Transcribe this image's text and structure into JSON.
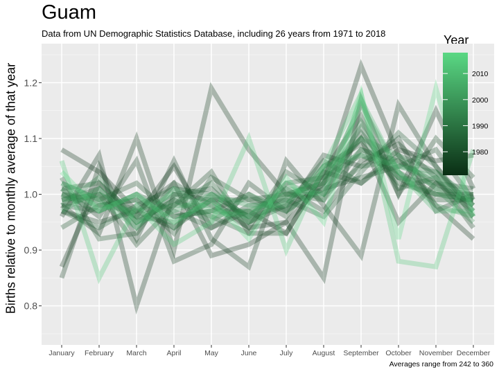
{
  "chart_data": {
    "type": "line",
    "title": "Guam",
    "subtitle": "Data from UN Demographic Statistics Database, including 26 years from 1971 to 2018",
    "caption": "Averages range from 242 to 360",
    "xlabel": "",
    "ylabel": "Births relative to monthly average of that year",
    "categories": [
      "January",
      "February",
      "March",
      "April",
      "May",
      "June",
      "July",
      "August",
      "September",
      "October",
      "November",
      "December"
    ],
    "ylim": [
      0.73,
      1.27
    ],
    "yticks": [
      0.8,
      0.9,
      1.0,
      1.1,
      1.2
    ],
    "ytick_labels": [
      "0.8",
      "0.9",
      "1.0",
      "1.1",
      "1.2"
    ],
    "grid": true,
    "legend": {
      "title": "Year",
      "placement": "top-right",
      "range": [
        1971,
        2018
      ],
      "ticks": [
        1980,
        1990,
        2000,
        2010
      ],
      "tick_labels": [
        "1980",
        "1990",
        "2000",
        "2010"
      ],
      "color_low": "#0a2e14",
      "color_high": "#5ad884"
    },
    "series": [
      {
        "year": 1971,
        "values": [
          0.87,
          1.02,
          0.96,
          1.05,
          0.94,
          0.97,
          0.93,
          1.04,
          1.02,
          1.08,
          1.06,
          1.07
        ]
      },
      {
        "year": 1972,
        "values": [
          1.08,
          1.04,
          0.97,
          1.02,
          0.89,
          0.91,
          0.95,
          1.02,
          1.23,
          1.07,
          0.98,
          0.92
        ]
      },
      {
        "year": 1973,
        "values": [
          0.96,
          1.07,
          0.8,
          1.0,
          0.99,
          0.94,
          0.95,
          0.85,
          1.17,
          1.0,
          1.15,
          1.01
        ]
      },
      {
        "year": 1974,
        "values": [
          0.98,
          0.93,
          1.1,
          0.9,
          1.19,
          1.08,
          1.0,
          1.02,
          1.1,
          0.95,
          1.02,
          0.98
        ]
      },
      {
        "year": 1975,
        "values": [
          0.85,
          1.05,
          0.92,
          1.06,
          0.92,
          0.87,
          1.06,
          0.98,
          0.89,
          1.16,
          1.05,
          0.96
        ]
      },
      {
        "year": 1976,
        "values": [
          1.01,
          0.96,
          1.06,
          0.88,
          0.91,
          1.02,
          0.97,
          1.07,
          1.05,
          1.1,
          0.97,
          1.0
        ]
      },
      {
        "year": 1977,
        "values": [
          0.98,
          1.0,
          0.91,
          0.98,
          1.04,
          0.93,
          0.93,
          1.04,
          1.14,
          1.0,
          1.1,
          1.03
        ]
      },
      {
        "year": 1978,
        "values": [
          0.97,
          0.95,
          0.97,
          0.94,
          0.99,
          0.96,
          1.01,
          0.97,
          1.06,
          1.09,
          1.03,
          0.94
        ]
      },
      {
        "year": 1979,
        "values": [
          0.99,
          1.01,
          0.94,
          1.0,
          1.01,
          0.95,
          0.98,
          1.01,
          1.03,
          1.05,
          1.08,
          0.99
        ]
      },
      {
        "year": 1980,
        "values": [
          1.0,
          0.99,
          1.02,
          0.96,
          0.97,
          1.0,
          0.96,
          1.05,
          1.09,
          1.02,
          1.0,
          0.99
        ]
      },
      {
        "year": 1981,
        "values": [
          0.94,
          0.98,
          0.99,
          0.93,
          1.03,
          0.99,
          1.0,
          0.99,
          1.08,
          1.06,
          1.02,
          1.01
        ]
      },
      {
        "year": 1982,
        "values": [
          1.03,
          0.92,
          0.93,
          1.02,
          0.98,
          0.94,
          1.04,
          1.0,
          1.11,
          1.03,
          0.99,
          0.99
        ]
      },
      {
        "year": 1983,
        "values": [
          0.98,
          0.97,
          1.0,
          0.97,
          0.94,
          0.98,
          0.99,
          0.96,
          1.04,
          1.11,
          1.05,
          0.97
        ]
      },
      {
        "year": 1984,
        "values": [
          1.01,
          1.02,
          0.95,
          0.99,
          0.96,
          0.93,
          1.02,
          1.03,
          1.07,
          1.04,
          1.0,
          1.0
        ]
      },
      {
        "year": 1985,
        "values": [
          0.97,
          0.94,
          0.98,
          1.01,
          1.0,
          0.96,
          0.98,
          1.06,
          1.02,
          1.07,
          1.04,
          0.98
        ]
      },
      {
        "year": 1986,
        "values": [
          1.02,
          0.99,
          0.96,
          0.95,
          0.99,
          0.99,
          0.97,
          1.02,
          1.12,
          1.01,
          1.03,
          0.96
        ]
      },
      {
        "year": 1988,
        "values": [
          0.99,
          1.0,
          0.97,
          0.98,
          1.02,
          0.95,
          1.0,
          1.0,
          1.05,
          1.06,
          1.01,
          1.0
        ]
      },
      {
        "year": 1990,
        "values": [
          1.0,
          0.98,
          0.99,
          0.96,
          0.97,
          0.97,
          0.99,
          1.03,
          1.1,
          1.03,
          1.02,
          0.97
        ]
      },
      {
        "year": 1993,
        "values": [
          0.98,
          1.03,
          0.95,
          0.99,
          0.95,
          1.0,
          0.97,
          1.01,
          1.08,
          1.05,
          1.04,
          0.99
        ]
      },
      {
        "year": 1995,
        "values": [
          1.0,
          0.97,
          1.0,
          0.94,
          1.0,
          0.96,
          1.02,
          0.99,
          1.13,
          1.03,
          1.0,
          0.99
        ]
      },
      {
        "year": 1998,
        "values": [
          0.99,
          1.0,
          0.96,
          0.98,
          0.98,
          0.95,
          0.99,
          1.04,
          1.1,
          1.07,
          1.01,
          0.95
        ]
      },
      {
        "year": 2001,
        "values": [
          1.01,
          0.98,
          0.97,
          1.0,
          0.96,
          0.97,
          1.0,
          1.02,
          1.16,
          1.04,
          0.98,
          0.96
        ]
      },
      {
        "year": 2004,
        "values": [
          0.97,
          1.01,
          0.95,
          0.97,
          1.0,
          0.98,
          0.98,
          1.05,
          1.07,
          1.05,
          1.03,
          0.98
        ]
      },
      {
        "year": 2008,
        "values": [
          1.02,
          0.99,
          0.94,
          1.01,
          0.97,
          0.96,
          1.01,
          1.0,
          1.17,
          1.04,
          0.97,
          0.97
        ]
      },
      {
        "year": 2013,
        "values": [
          1.06,
          0.85,
          0.98,
          0.91,
          0.95,
          1.1,
          0.9,
          1.05,
          1.18,
          0.88,
          0.87,
          1.08
        ]
      },
      {
        "year": 2018,
        "values": [
          1.04,
          0.97,
          1.0,
          0.95,
          0.99,
          0.92,
          1.03,
          0.95,
          1.18,
          0.92,
          1.19,
          0.96
        ]
      }
    ]
  }
}
